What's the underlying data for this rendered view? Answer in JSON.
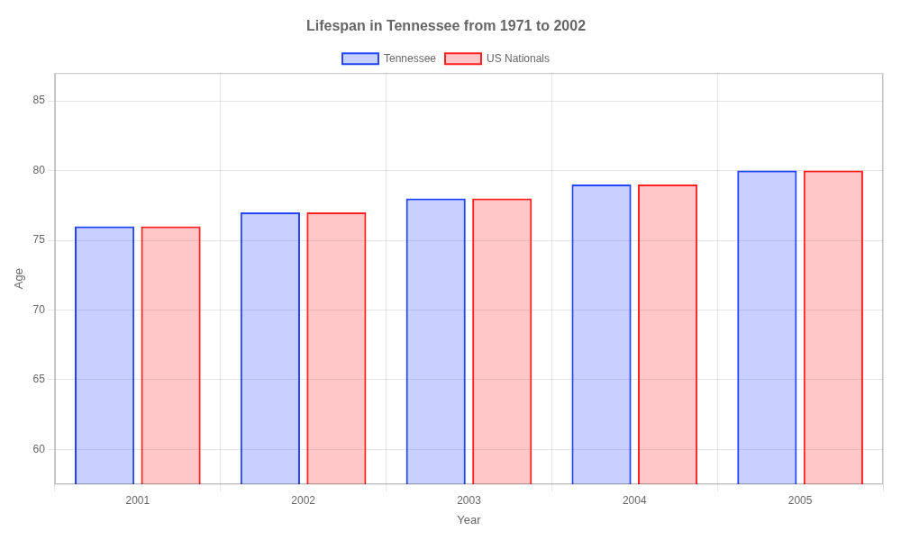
{
  "chart_data": {
    "type": "bar",
    "title": "Lifespan in Tennessee from 1971 to 2002",
    "x_label": "Year",
    "y_label": "Age",
    "categories": [
      "2001",
      "2002",
      "2003",
      "2004",
      "2005"
    ],
    "series": [
      {
        "name": "Tennessee",
        "color": "#2244ff",
        "values": [
          76.0,
          77.0,
          78.0,
          79.0,
          80.0
        ]
      },
      {
        "name": "US Nationals",
        "color": "#ff2020",
        "values": [
          76.0,
          77.0,
          78.0,
          79.0,
          80.0
        ]
      }
    ],
    "ylim": [
      57.5,
      87
    ],
    "yticks": [
      60,
      65,
      70,
      75,
      80,
      85
    ],
    "grid": true,
    "legend": "top"
  }
}
